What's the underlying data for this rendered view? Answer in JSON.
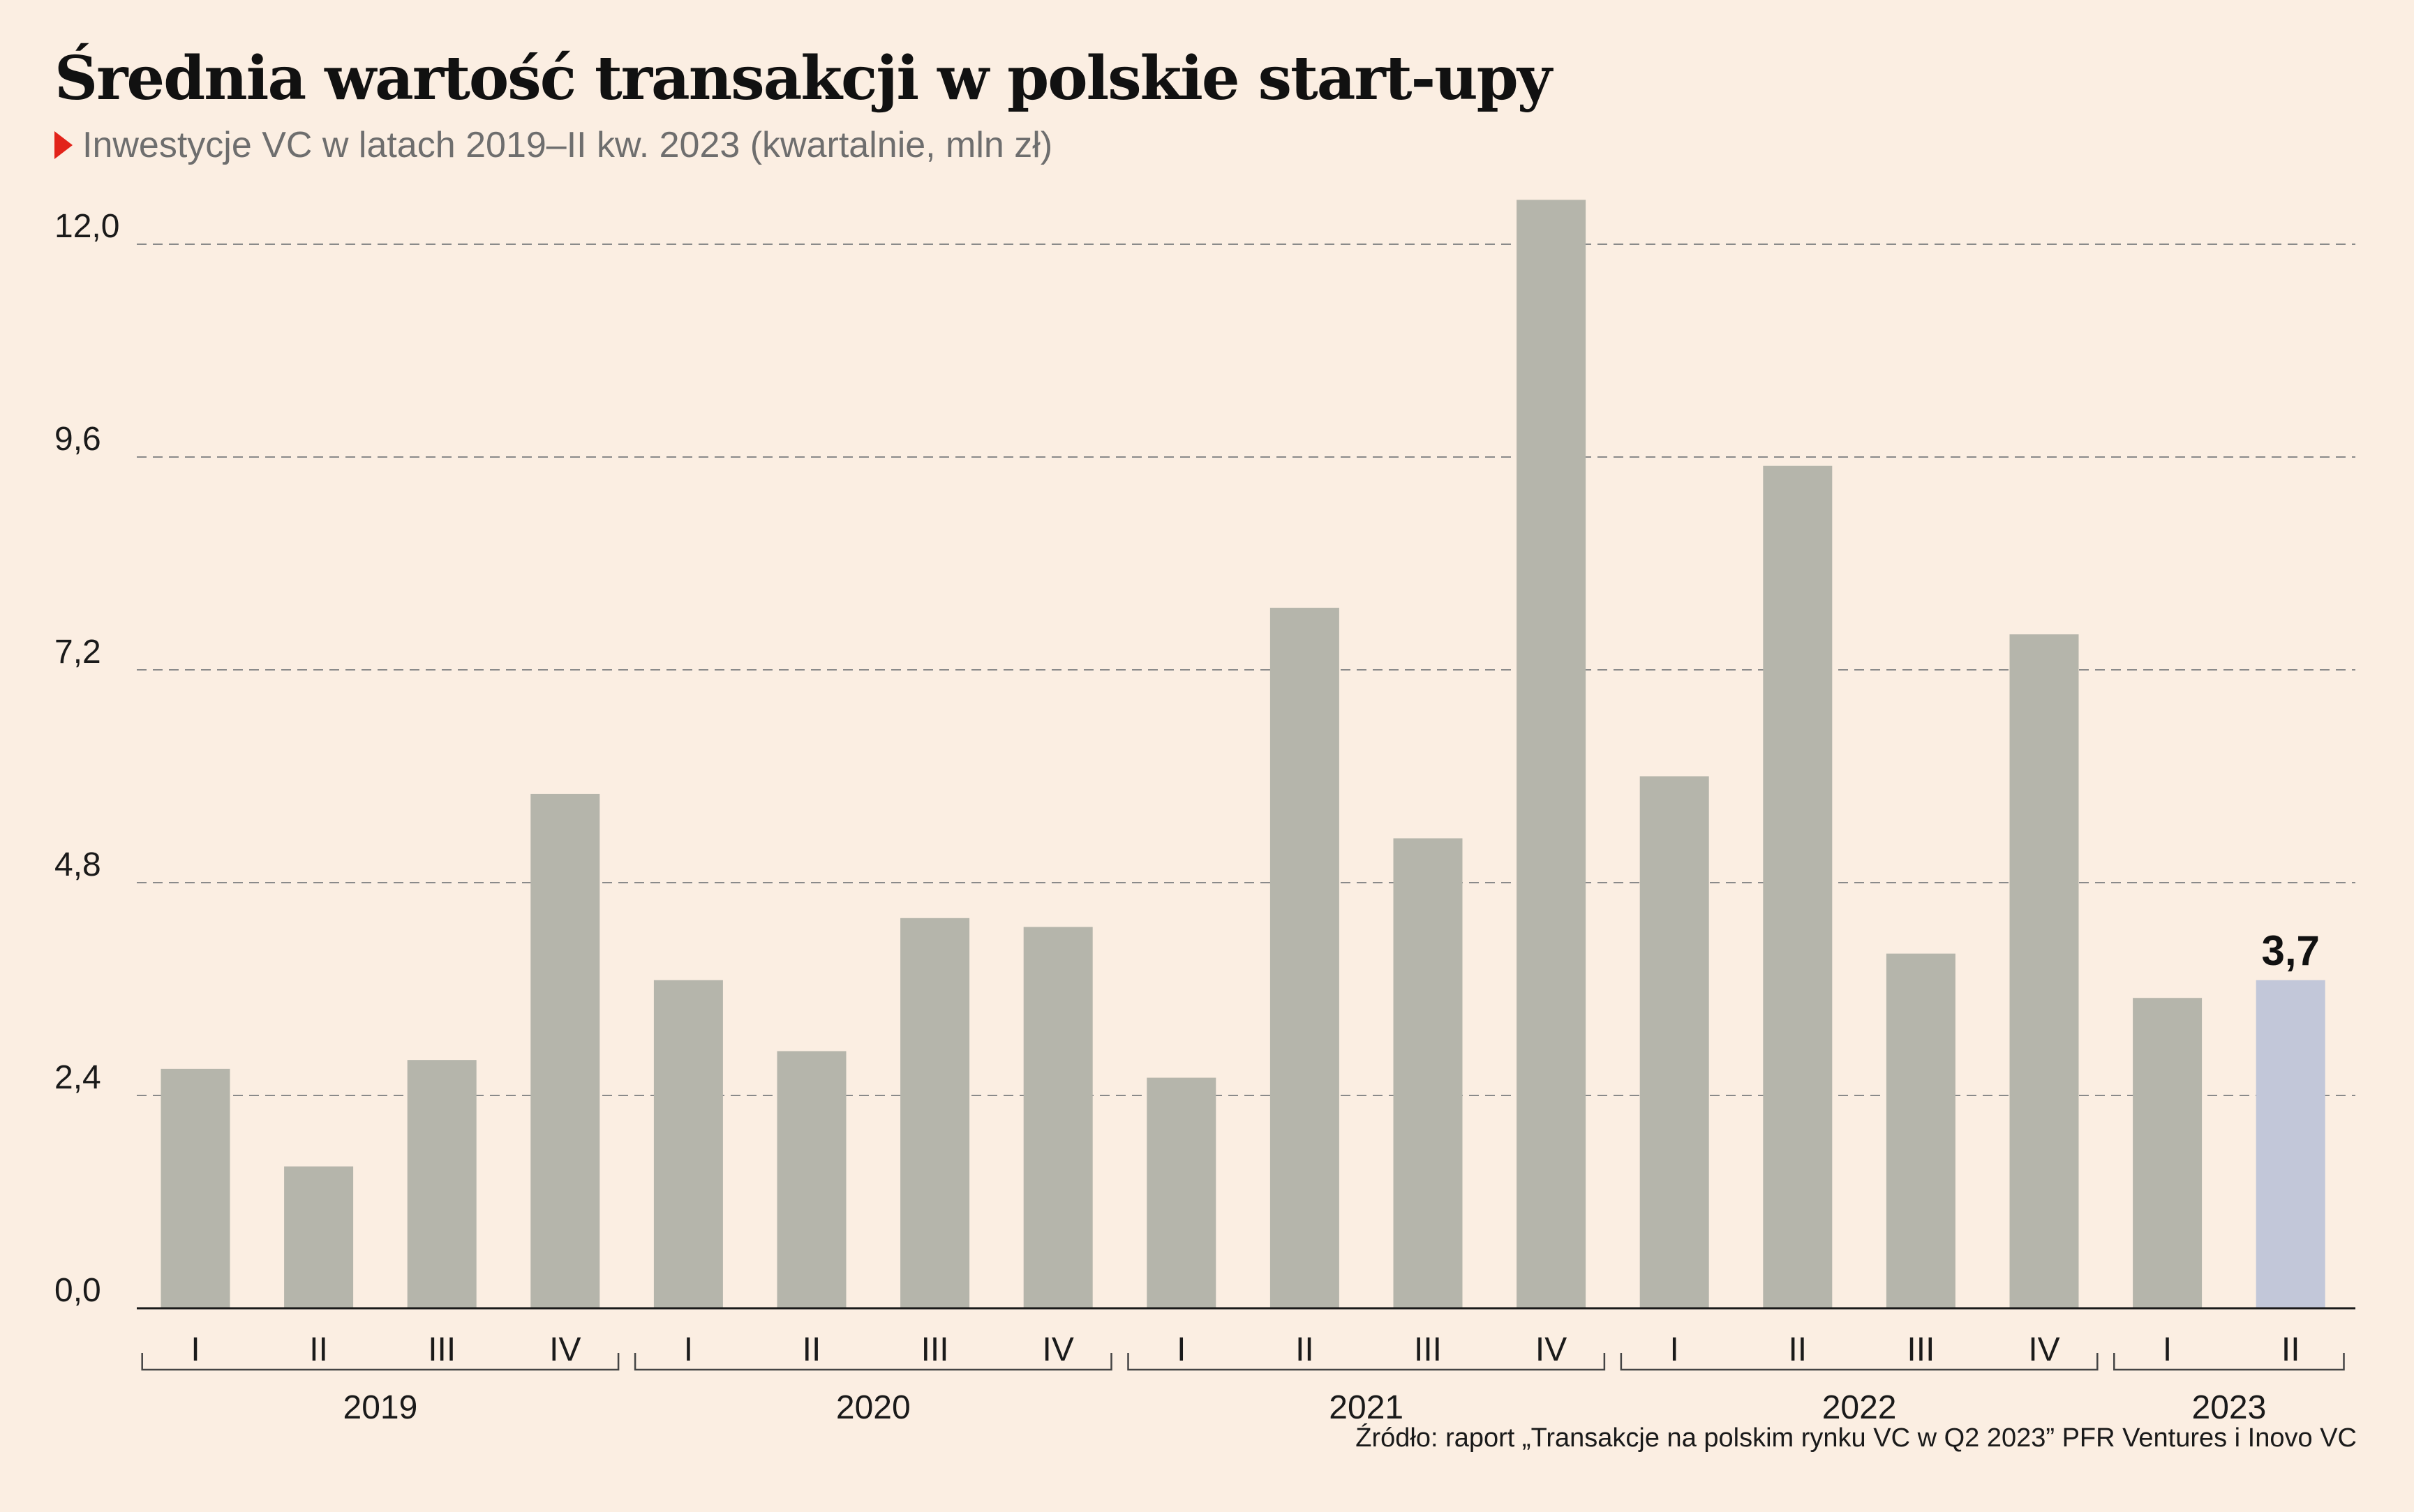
{
  "title": "Średnia wartość transakcji w polskie start-upy",
  "subtitle": "Inwestycje VC w latach 2019–II kw. 2023 (kwartalnie, mln zł)",
  "source": "Źródło: raport „Transakcje na polskim rynku VC w Q2 2023” PFR Ventures i Inovo VC",
  "colors": {
    "bar": "#b5b5ab",
    "highlight": "#c2c7d9",
    "accent": "#e2231a",
    "background": "#fbeee2"
  },
  "chart_data": {
    "type": "bar",
    "title": "Średnia wartość transakcji w polskie start-upy",
    "subtitle": "Inwestycje VC w latach 2019–II kw. 2023 (kwartalnie, mln zł)",
    "categories": [
      "I",
      "II",
      "III",
      "IV",
      "I",
      "II",
      "III",
      "IV",
      "I",
      "II",
      "III",
      "IV",
      "I",
      "II",
      "III",
      "IV",
      "I",
      "II"
    ],
    "groups": [
      {
        "label": "2019",
        "count": 4
      },
      {
        "label": "2020",
        "count": 4
      },
      {
        "label": "2021",
        "count": 4
      },
      {
        "label": "2022",
        "count": 4
      },
      {
        "label": "2023",
        "count": 2
      }
    ],
    "values": [
      2.7,
      1.6,
      2.8,
      5.8,
      3.7,
      2.9,
      4.4,
      4.3,
      2.6,
      7.9,
      5.3,
      12.5,
      6.0,
      9.5,
      4.0,
      7.6,
      3.5,
      3.7
    ],
    "highlight_index": 17,
    "highlight_label": "3,7",
    "yticks": [
      "0,0",
      "2,4",
      "4,8",
      "7,2",
      "9,6",
      "12,0"
    ],
    "ytick_values": [
      0,
      2.4,
      4.8,
      7.2,
      9.6,
      12.0
    ],
    "ylim": [
      0,
      12.5
    ],
    "grid": true,
    "legend": "none"
  }
}
